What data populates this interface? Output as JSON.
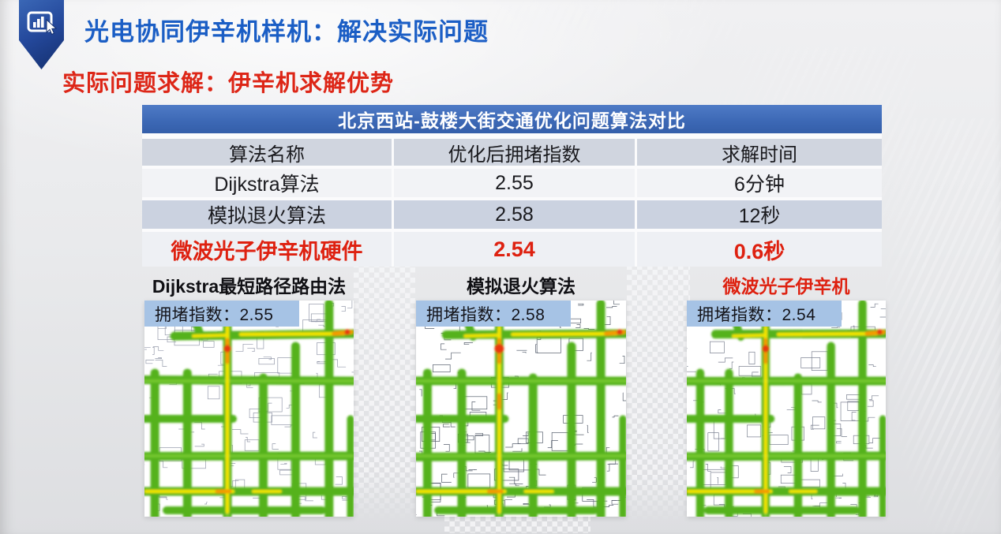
{
  "header": {
    "title": "光电协同伊辛机样机：解决实际问题",
    "subtitle": "实际问题求解：伊辛机求解优势"
  },
  "table": {
    "title": "北京西站-鼓楼大街交通优化问题算法对比",
    "columns": [
      "算法名称",
      "优化后拥堵指数",
      "求解时间"
    ],
    "rows": [
      {
        "algorithm": "Dijkstra算法",
        "congestion": "2.55",
        "time": "6分钟"
      },
      {
        "algorithm": "模拟退火算法",
        "congestion": "2.58",
        "time": "12秒"
      },
      {
        "algorithm": "微波光子伊辛机硬件",
        "congestion": "2.54",
        "time": "0.6秒"
      }
    ],
    "highlighted_row": "微波光子伊辛机硬件"
  },
  "maps": [
    {
      "label": "Dijkstra最短路径路由法",
      "badge": "拥堵指数：2.55",
      "congestion_index": 2.55
    },
    {
      "label": "模拟退火算法",
      "badge": "拥堵指数：2.58",
      "congestion_index": 2.58
    },
    {
      "label": "微波光子伊辛机",
      "badge": "拥堵指数：2.54",
      "congestion_index": 2.54
    }
  ],
  "colors": {
    "title_blue": "#1b5ec5",
    "accent_red": "#dd2617",
    "table_header_blue": "#3d69b6",
    "table_row_alt": "#cbd2e0",
    "badge_blue": "#a6c3e5",
    "road_green": "#55b21e",
    "road_light_green": "#73c62e",
    "road_yellow": "#f2e400",
    "road_orange": "#f59b00",
    "road_red": "#e8390e",
    "minor_street_grays": [
      "#8a90a2",
      "#454e5e",
      "#6a7182"
    ]
  }
}
